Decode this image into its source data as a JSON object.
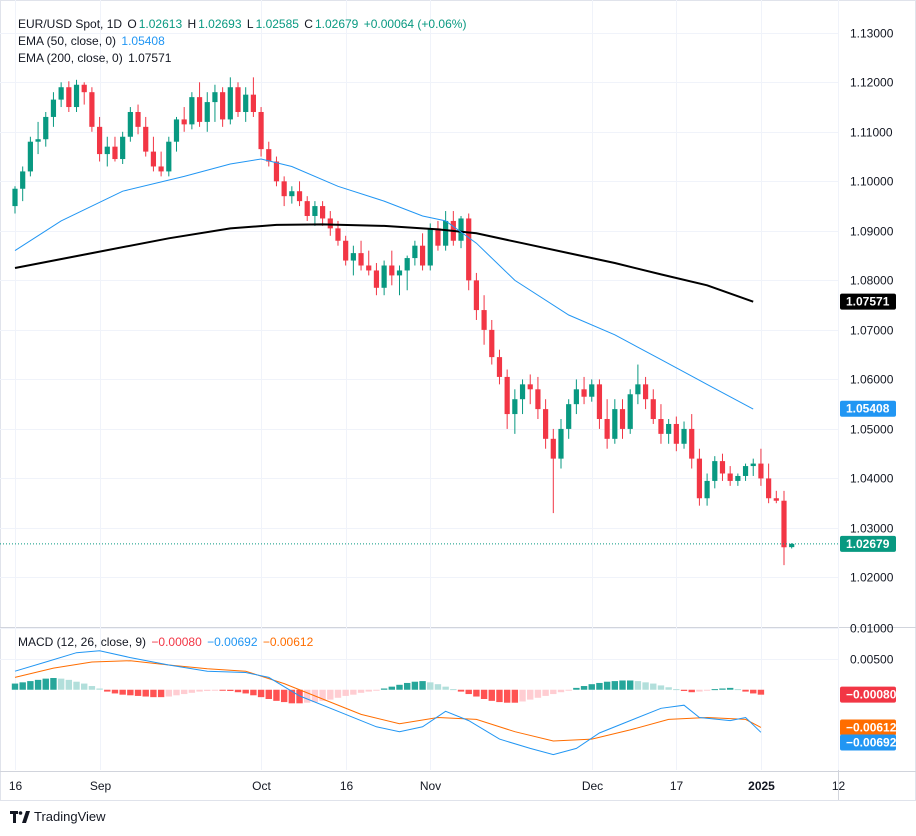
{
  "legend": {
    "symbol": "EUR/USD Spot, 1D",
    "o_label": "O",
    "o_value": "1.02613",
    "h_label": "H",
    "h_value": "1.02693",
    "l_label": "L",
    "l_value": "1.02585",
    "c_label": "C",
    "c_value": "1.02679",
    "change": "+0.00064 (+0.06%)",
    "ema50_label": "EMA (50, close, 0)",
    "ema50_value": "1.05408",
    "ema200_label": "EMA (200, close, 0)",
    "ema200_value": "1.07571",
    "macd_label": "MACD (12, 26, close, 9)",
    "macd_hist": "−0.00080",
    "macd_line": "−0.00692",
    "macd_signal": "−0.00612"
  },
  "footer": {
    "brand": "TradingView"
  },
  "colors": {
    "up": "#089981",
    "down": "#f23645",
    "ema50": "#2196f3",
    "ema200": "#000000",
    "macd_line": "#2196f3",
    "signal_line": "#ff6d00",
    "hist_up_strong": "#26a69a",
    "hist_up_weak": "#b2dfdb",
    "hist_down_strong": "#ff5252",
    "hist_down_weak": "#ffcdd2"
  },
  "chart_data": [
    {
      "type": "candlestick",
      "title": "EUR/USD Spot, 1D",
      "ylim": [
        1.01,
        1.135
      ],
      "yticks": [
        "1.13000",
        "1.12000",
        "1.11000",
        "1.10000",
        "1.09000",
        "1.08000",
        "1.07000",
        "1.06000",
        "1.05000",
        "1.04000",
        "1.03000",
        "1.02000"
      ],
      "xticks": [
        {
          "index": 0,
          "label": "16"
        },
        {
          "index": 11,
          "label": "Sep"
        },
        {
          "index": 32,
          "label": "Oct"
        },
        {
          "index": 43,
          "label": "16"
        },
        {
          "index": 54,
          "label": "Nov"
        },
        {
          "index": 75,
          "label": "Dec"
        },
        {
          "index": 86,
          "label": "17"
        },
        {
          "index": 97,
          "label": "2025"
        },
        {
          "index": 107,
          "label": "12"
        }
      ],
      "current_price_label": "1.02679",
      "ema50_label": "1.05408",
      "ema200_label": "1.07571",
      "candles": [
        [
          1.095,
          1.099,
          1.0935,
          1.0985
        ],
        [
          1.0985,
          1.103,
          1.096,
          1.102
        ],
        [
          1.102,
          1.109,
          1.101,
          1.108
        ],
        [
          1.108,
          1.112,
          1.1055,
          1.1085
        ],
        [
          1.1085,
          1.114,
          1.107,
          1.113
        ],
        [
          1.113,
          1.118,
          1.111,
          1.1165
        ],
        [
          1.1165,
          1.12,
          1.115,
          1.119
        ],
        [
          1.119,
          1.1202,
          1.114,
          1.115
        ],
        [
          1.115,
          1.1205,
          1.114,
          1.1195
        ],
        [
          1.1195,
          1.12,
          1.1155,
          1.118
        ],
        [
          1.118,
          1.119,
          1.11,
          1.111
        ],
        [
          1.111,
          1.113,
          1.104,
          1.1055
        ],
        [
          1.1055,
          1.109,
          1.103,
          1.107
        ],
        [
          1.107,
          1.109,
          1.104,
          1.1045
        ],
        [
          1.1045,
          1.11,
          1.1035,
          1.109
        ],
        [
          1.109,
          1.115,
          1.108,
          1.114
        ],
        [
          1.114,
          1.1155,
          1.1095,
          1.111
        ],
        [
          1.111,
          1.113,
          1.105,
          1.106
        ],
        [
          1.106,
          1.109,
          1.102,
          1.103
        ],
        [
          1.103,
          1.106,
          1.101,
          1.102
        ],
        [
          1.102,
          1.109,
          1.101,
          1.108
        ],
        [
          1.108,
          1.113,
          1.106,
          1.1125
        ],
        [
          1.1125,
          1.115,
          1.11,
          1.1115
        ],
        [
          1.1115,
          1.118,
          1.1105,
          1.117
        ],
        [
          1.117,
          1.12,
          1.111,
          1.112
        ],
        [
          1.112,
          1.118,
          1.11,
          1.116
        ],
        [
          1.116,
          1.1195,
          1.112,
          1.118
        ],
        [
          1.118,
          1.119,
          1.111,
          1.1125
        ],
        [
          1.1125,
          1.121,
          1.1115,
          1.119
        ],
        [
          1.119,
          1.12,
          1.113,
          1.114
        ],
        [
          1.114,
          1.119,
          1.112,
          1.1175
        ],
        [
          1.1175,
          1.121,
          1.113,
          1.114
        ],
        [
          1.114,
          1.115,
          1.105,
          1.1065
        ],
        [
          1.1065,
          1.108,
          1.103,
          1.104
        ],
        [
          1.104,
          1.105,
          1.099,
          1.1
        ],
        [
          1.1,
          1.101,
          1.095,
          1.097
        ],
        [
          1.097,
          1.099,
          1.0955,
          1.098
        ],
        [
          1.098,
          1.1,
          1.095,
          1.096
        ],
        [
          1.096,
          1.097,
          1.092,
          1.093
        ],
        [
          1.093,
          1.096,
          1.091,
          1.095
        ],
        [
          1.095,
          1.096,
          1.091,
          1.0925
        ],
        [
          1.0925,
          1.094,
          1.089,
          1.0905
        ],
        [
          1.0905,
          1.092,
          1.087,
          1.088
        ],
        [
          1.088,
          1.089,
          1.083,
          1.084
        ],
        [
          1.084,
          1.087,
          1.081,
          1.0855
        ],
        [
          1.0855,
          1.088,
          1.082,
          1.083
        ],
        [
          1.083,
          1.086,
          1.081,
          1.082
        ],
        [
          1.082,
          1.0835,
          1.077,
          1.0785
        ],
        [
          1.0785,
          1.084,
          1.077,
          1.083
        ],
        [
          1.083,
          1.086,
          1.079,
          1.081
        ],
        [
          1.081,
          1.083,
          1.077,
          1.082
        ],
        [
          1.082,
          1.085,
          1.078,
          1.0845
        ],
        [
          1.0845,
          1.088,
          1.083,
          1.087
        ],
        [
          1.087,
          1.0895,
          1.082,
          1.083
        ],
        [
          1.083,
          1.0915,
          1.082,
          1.0905
        ],
        [
          1.0905,
          1.092,
          1.086,
          1.087
        ],
        [
          1.087,
          1.094,
          1.086,
          1.092
        ],
        [
          1.092,
          1.094,
          1.087,
          1.088
        ],
        [
          1.088,
          1.093,
          1.0865,
          1.0925
        ],
        [
          1.0925,
          1.0935,
          1.078,
          1.08
        ],
        [
          1.08,
          1.0815,
          1.072,
          1.074
        ],
        [
          1.074,
          1.077,
          1.067,
          1.07
        ],
        [
          1.07,
          1.072,
          1.063,
          1.0645
        ],
        [
          1.0645,
          1.066,
          1.059,
          1.0605
        ],
        [
          1.0605,
          1.062,
          1.05,
          1.053
        ],
        [
          1.053,
          1.058,
          1.049,
          1.056
        ],
        [
          1.056,
          1.06,
          1.053,
          1.059
        ],
        [
          1.059,
          1.061,
          1.055,
          1.058
        ],
        [
          1.058,
          1.0605,
          1.052,
          1.054
        ],
        [
          1.054,
          1.056,
          1.046,
          1.048
        ],
        [
          1.048,
          1.05,
          1.033,
          1.044
        ],
        [
          1.044,
          1.052,
          1.042,
          1.05
        ],
        [
          1.05,
          1.056,
          1.048,
          1.055
        ],
        [
          1.055,
          1.06,
          1.053,
          1.058
        ],
        [
          1.058,
          1.0605,
          1.055,
          1.0565
        ],
        [
          1.0565,
          1.06,
          1.0555,
          1.059
        ],
        [
          1.059,
          1.06,
          1.05,
          1.052
        ],
        [
          1.052,
          1.056,
          1.046,
          1.048
        ],
        [
          1.048,
          1.056,
          1.047,
          1.054
        ],
        [
          1.054,
          1.056,
          1.048,
          1.05
        ],
        [
          1.05,
          1.058,
          1.049,
          1.057
        ],
        [
          1.057,
          1.063,
          1.055,
          1.059
        ],
        [
          1.059,
          1.0605,
          1.054,
          1.056
        ],
        [
          1.056,
          1.058,
          1.051,
          1.052
        ],
        [
          1.052,
          1.055,
          1.047,
          1.049
        ],
        [
          1.049,
          1.052,
          1.047,
          1.051
        ],
        [
          1.051,
          1.0525,
          1.0455,
          1.047
        ],
        [
          1.047,
          1.0515,
          1.046,
          1.05
        ],
        [
          1.05,
          1.053,
          1.042,
          1.044
        ],
        [
          1.044,
          1.046,
          1.0345,
          1.036
        ],
        [
          1.036,
          1.041,
          1.0345,
          1.0395
        ],
        [
          1.0395,
          1.0445,
          1.038,
          1.0435
        ],
        [
          1.0435,
          1.045,
          1.0395,
          1.041
        ],
        [
          1.041,
          1.0425,
          1.0385,
          1.0395
        ],
        [
          1.0395,
          1.041,
          1.0385,
          1.0405
        ],
        [
          1.0405,
          1.043,
          1.0395,
          1.0425
        ],
        [
          1.0425,
          1.044,
          1.0405,
          1.043
        ],
        [
          1.043,
          1.046,
          1.0385,
          1.04
        ],
        [
          1.04,
          1.043,
          1.035,
          1.036
        ],
        [
          1.036,
          1.0375,
          1.035,
          1.0355
        ],
        [
          1.0355,
          1.0375,
          1.0225,
          1.0261
        ],
        [
          1.02613,
          1.02693,
          1.02585,
          1.02679
        ]
      ],
      "ema50": [
        [
          0,
          1.086
        ],
        [
          6,
          1.092
        ],
        [
          14,
          1.098
        ],
        [
          22,
          1.101
        ],
        [
          28,
          1.1035
        ],
        [
          32,
          1.1045
        ],
        [
          36,
          1.103
        ],
        [
          42,
          1.099
        ],
        [
          48,
          1.096
        ],
        [
          53,
          1.093
        ],
        [
          56,
          1.092
        ],
        [
          60,
          1.0875
        ],
        [
          65,
          1.08
        ],
        [
          72,
          1.073
        ],
        [
          78,
          1.069
        ],
        [
          84,
          1.064
        ],
        [
          90,
          1.059
        ],
        [
          96,
          1.054
        ]
      ],
      "ema200": [
        [
          0,
          1.0825
        ],
        [
          10,
          1.0855
        ],
        [
          20,
          1.0885
        ],
        [
          28,
          1.0905
        ],
        [
          34,
          1.0912
        ],
        [
          40,
          1.0913
        ],
        [
          48,
          1.091
        ],
        [
          55,
          1.0903
        ],
        [
          60,
          1.0895
        ],
        [
          66,
          1.0875
        ],
        [
          72,
          1.0855
        ],
        [
          78,
          1.0835
        ],
        [
          84,
          1.0812
        ],
        [
          90,
          1.079
        ],
        [
          96,
          1.0757
        ]
      ]
    },
    {
      "type": "macd",
      "title": "MACD (12, 26, close, 9)",
      "ylim": [
        -0.013,
        0.01
      ],
      "yticks": [
        "0.01000",
        "0.00500"
      ],
      "hist_label": "−0.00080",
      "signal_label": "−0.00612",
      "macd_label": "−0.00692",
      "macd": [
        [
          0,
          0.003
        ],
        [
          4,
          0.0045
        ],
        [
          8,
          0.006
        ],
        [
          11,
          0.0063
        ],
        [
          15,
          0.0052
        ],
        [
          20,
          0.004
        ],
        [
          25,
          0.003
        ],
        [
          30,
          0.0028
        ],
        [
          33,
          0.002
        ],
        [
          37,
          -0.001
        ],
        [
          42,
          -0.0035
        ],
        [
          47,
          -0.006
        ],
        [
          50,
          -0.0068
        ],
        [
          53,
          -0.006
        ],
        [
          56,
          -0.0035
        ],
        [
          59,
          -0.005
        ],
        [
          63,
          -0.008
        ],
        [
          67,
          -0.0095
        ],
        [
          70,
          -0.0105
        ],
        [
          73,
          -0.0095
        ],
        [
          76,
          -0.007
        ],
        [
          80,
          -0.005
        ],
        [
          84,
          -0.003
        ],
        [
          87,
          -0.0025
        ],
        [
          89,
          -0.0045
        ],
        [
          93,
          -0.005
        ],
        [
          95,
          -0.0045
        ],
        [
          97,
          -0.0069
        ]
      ],
      "signal": [
        [
          0,
          0.002
        ],
        [
          5,
          0.0035
        ],
        [
          10,
          0.0045
        ],
        [
          15,
          0.0047
        ],
        [
          20,
          0.004
        ],
        [
          25,
          0.0034
        ],
        [
          30,
          0.003
        ],
        [
          35,
          0.001
        ],
        [
          40,
          -0.0015
        ],
        [
          45,
          -0.004
        ],
        [
          50,
          -0.0055
        ],
        [
          55,
          -0.0045
        ],
        [
          60,
          -0.0048
        ],
        [
          65,
          -0.0068
        ],
        [
          70,
          -0.0083
        ],
        [
          75,
          -0.008
        ],
        [
          80,
          -0.0065
        ],
        [
          85,
          -0.0048
        ],
        [
          90,
          -0.0045
        ],
        [
          95,
          -0.0048
        ],
        [
          97,
          -0.0061
        ]
      ],
      "histogram": [
        0.001,
        0.0012,
        0.0014,
        0.0016,
        0.0018,
        0.0019,
        0.0018,
        0.0016,
        0.0013,
        0.001,
        0.0006,
        0.0002,
        -0.0003,
        -0.0006,
        -0.0008,
        -0.0009,
        -0.001,
        -0.0011,
        -0.0012,
        -0.0012,
        -0.0011,
        -0.0009,
        -0.0007,
        -0.0005,
        -0.0003,
        -0.0002,
        -0.0001,
        -0.0001,
        -0.0002,
        -0.0004,
        -0.0006,
        -0.0009,
        -0.0012,
        -0.0015,
        -0.0018,
        -0.002,
        -0.0022,
        -0.0022,
        -0.0021,
        -0.002,
        -0.0018,
        -0.0016,
        -0.0013,
        -0.001,
        -0.0008,
        -0.0005,
        -0.0003,
        -0.0001,
        0.0002,
        0.0005,
        0.0008,
        0.0011,
        0.0013,
        0.0014,
        0.0012,
        0.0009,
        0.0005,
        0.0001,
        -0.0003,
        -0.0007,
        -0.0011,
        -0.0015,
        -0.0018,
        -0.002,
        -0.0021,
        -0.0021,
        -0.0019,
        -0.0016,
        -0.0013,
        -0.001,
        -0.0007,
        -0.0004,
        -0.0001,
        0.0003,
        0.0006,
        0.0009,
        0.0011,
        0.0013,
        0.0014,
        0.0015,
        0.0015,
        0.0014,
        0.0012,
        0.001,
        0.0007,
        0.0004,
        0.0001,
        -0.0002,
        -0.0004,
        -0.0003,
        -0.0001,
        0.0001,
        0.0002,
        0.0003,
        0.0001,
        -0.0003,
        -0.0006,
        -0.0008
      ]
    }
  ]
}
